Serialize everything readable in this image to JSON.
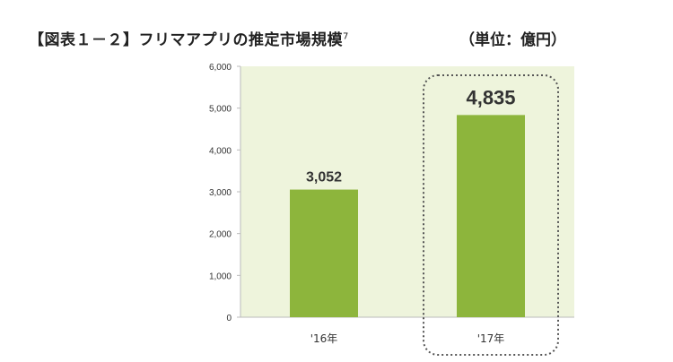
{
  "chart_data": {
    "type": "bar",
    "title": "【図表１－２】フリマアプリの推定市場規模",
    "title_footnote": "7",
    "unit_note": "（単位：億円）",
    "categories": [
      "'16年",
      "'17年"
    ],
    "values": [
      3052,
      4835
    ],
    "value_labels": [
      "3,052",
      "4,835"
    ],
    "ylim": [
      0,
      6000
    ],
    "y_ticks": [
      0,
      1000,
      2000,
      3000,
      4000,
      5000,
      6000
    ],
    "y_tick_labels": [
      "0",
      "1,000",
      "2,000",
      "3,000",
      "4,000",
      "5,000",
      "6,000"
    ],
    "highlighted_category": "'17年",
    "grid": false,
    "colors": {
      "bar": "#8db53c",
      "plot_background": "#eef4dc",
      "highlight_border": "#555555"
    }
  }
}
